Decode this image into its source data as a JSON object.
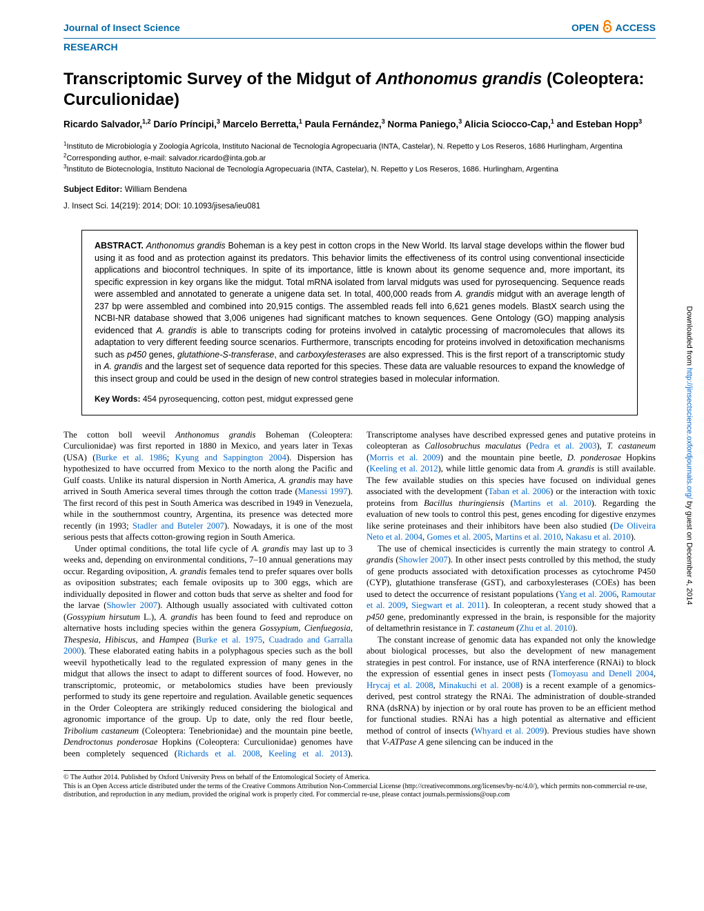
{
  "header": {
    "journal": "Journal of Insect Science",
    "open_label": "OPEN",
    "access_label": "ACCESS",
    "section": "RESEARCH"
  },
  "article": {
    "title_html": "Transcriptomic Survey of the Midgut of <em>Anthonomus grandis</em> (Coleoptera: Curculionidae)",
    "authors_html": "Ricardo Salvador,<sup>1,2</sup> Darío Príncipi,<sup>3</sup> Marcelo Berretta,<sup>1</sup> Paula Fernández,<sup>3</sup> Norma Paniego,<sup>3</sup> Alicia Sciocco-Cap,<sup>1</sup> and Esteban Hopp<sup>3</sup>",
    "affiliations_html": "<sup>1</sup>Instituto de Microbiología y Zoología Agrícola, Instituto Nacional de Tecnología Agropecuaria (INTA, Castelar), N. Repetto y Los Reseros, 1686 Hurlingham, Argentina<br><sup>2</sup>Corresponding author, e-mail: salvador.ricardo@inta.gob.ar<br><sup>3</sup>Instituto de Biotecnología, Instituto Nacional de Tecnología Agropecuaria (INTA, Castelar), N. Repetto y Los Reseros, 1686. Hurlingham, Argentina",
    "subject_editor_label": "Subject Editor:",
    "subject_editor_name": "William Bendena",
    "citation": "J. Insect Sci. 14(219): 2014; DOI: 10.1093/jisesa/ieu081"
  },
  "abstract": {
    "text_html": "<b>ABSTRACT.</b> <em>Anthonomus grandis</em> Boheman is a key pest in cotton crops in the New World. Its larval stage develops within the flower bud using it as food and as protection against its predators. This behavior limits the effectiveness of its control using conventional insecticide applications and biocontrol techniques. In spite of its importance, little is known about its genome sequence and, more important, its specific expression in key organs like the midgut. Total mRNA isolated from larval midguts was used for pyrosequencing. Sequence reads were assembled and annotated to generate a unigene data set. In total, 400,000 reads from <em>A. grandis</em> midgut with an average length of 237 bp were assembled and combined into 20,915 contigs. The assembled reads fell into 6,621 genes models. BlastX search using the NCBI-NR database showed that 3,006 unigenes had significant matches to known sequences. Gene Ontology (GO) mapping analysis evidenced that <em>A. grandis</em> is able to transcripts coding for proteins involved in catalytic processing of macromolecules that allows its adaptation to very different feeding source scenarios. Furthermore, transcripts encoding for proteins involved in detoxification mechanisms such as <em>p450</em> genes, <em>glutathione-S-transferase</em>, and <em>carboxylesterases</em> are also expressed. This is the first report of a transcriptomic study in <em>A. grandis</em> and the largest set of sequence data reported for this species. These data are valuable resources to expand the knowledge of this insect group and could be used in the design of new control strategies based in molecular information.",
    "keywords_label": "Key Words",
    "keywords_text": "454 pyrosequencing, cotton pest, midgut expressed gene"
  },
  "body": {
    "p1_html": "The cotton boll weevil <em>Anthonomus grandis</em> Boheman (Coleoptera: Curculionidae) was first reported in 1880 in Mexico, and years later in Texas (USA) (<span class='link'>Burke et al. 1986</span>; <span class='link'>Kyung and Sappington 2004</span>). Dispersion has hypothesized to have occurred from Mexico to the north along the Pacific and Gulf coasts. Unlike its natural dispersion in North America, <em>A. grandis</em> may have arrived in South America several times through the cotton trade (<span class='link'>Manessi 1997</span>). The first record of this pest in South America was described in 1949 in Venezuela, while in the southernmost country, Argentina, its presence was detected more recently (in 1993; <span class='link'>Stadler and Buteler 2007</span>). Nowadays, it is one of the most serious pests that affects cotton-growing region in South America.",
    "p2_html": "Under optimal conditions, the total life cycle of <em>A. grandis</em> may last up to 3 weeks and, depending on environmental conditions, 7–10 annual generations may occur. Regarding oviposition, <em>A. grandis</em> females tend to prefer squares over bolls as oviposition substrates; each female oviposits up to 300 eggs, which are individually deposited in flower and cotton buds that serve as shelter and food for the larvae (<span class='link'>Showler 2007</span>). Although usually associated with cultivated cotton (<em>Gossypium hirsutum</em> L.), <em>A. grandis</em> has been found to feed and reproduce on alternative hosts including species within the genera <em>Gossypium, Cienfuegosia, Thespesia, Hibiscus</em>, and <em>Hampea</em> (<span class='link'>Burke et al. 1975</span>, <span class='link'>Cuadrado and Garralla 2000</span>). These elaborated eating habits in a polyphagous species such as the boll weevil hypothetically lead to the regulated expression of many genes in the midgut that allows the insect to adapt to different sources of food. However, no transcriptomic, proteomic, or metabolomics studies have been previously performed to study its gene repertoire and regulation. Available genetic sequences in the Order Coleoptera are strikingly reduced considering the biological and agronomic importance of the group. Up to date, only the red flour beetle, <em>Tribolium castaneum</em> (Coleoptera: Tenebrionidae) and the mountain pine beetle, <em>Dendroctonus ponderosae</em> Hopkins (Coleoptera: Curculionidae) genomes have been completely sequenced (<span class='link'>Richards et al. 2008</span>, <span class='link'>Keeling et al. 2013</span>). Transcriptome analyses have described expressed genes and putative proteins in coleopteran as <em>Callosobruchus maculatus</em> (<span class='link'>Pedra et al. 2003</span>), <em>T. castaneum</em> (<span class='link'>Morris et al. 2009</span>) and the mountain pine beetle, <em>D. ponderosae</em> Hopkins (<span class='link'>Keeling et al. 2012</span>), while little genomic data from <em>A. grandis</em> is still available. The few available studies on this species have focused on individual genes associated with the development (<span class='link'>Taban et al. 2006</span>) or the interaction with toxic proteins from <em>Bacillus thuringiensis</em> (<span class='link'>Martins et al. 2010</span>). Regarding the evaluation of new tools to control this pest, genes encoding for digestive enzymes like serine proteinases and their inhibitors have been also studied (<span class='link'>De Oliveira Neto et al. 2004</span>, <span class='link'>Gomes et al. 2005</span>, <span class='link'>Martins et al. 2010</span>, <span class='link'>Nakasu et al. 2010</span>).",
    "p3_html": "The use of chemical insecticides is currently the main strategy to control <em>A. grandis</em> (<span class='link'>Showler 2007</span>). In other insect pests controlled by this method, the study of gene products associated with detoxification processes as cytochrome P450 (CYP), glutathione transferase (GST), and carboxylesterases (COEs) has been used to detect the occurrence of resistant populations (<span class='link'>Yang et al. 2006</span>, <span class='link'>Ramoutar et al. 2009</span>, <span class='link'>Siegwart et al. 2011</span>). In coleopteran, a recent study showed that a <em>p450</em> gene, predominantly expressed in the brain, is responsible for the majority of deltamethrin resistance in <em>T. castaneum</em> (<span class='link'>Zhu et al. 2010</span>).",
    "p4_html": "The constant increase of genomic data has expanded not only the knowledge about biological processes, but also the development of new management strategies in pest control. For instance, use of RNA interference (RNAi) to block the expression of essential genes in insect pests (<span class='link'>Tomoyasu and Denell 2004</span>, <span class='link'>Hrycaj et al. 2008</span>, <span class='link'>Minakuchi et al. 2008</span>) is a recent example of a genomics-derived, pest control strategy the RNAi. The administration of double-stranded RNA (dsRNA) by injection or by oral route has proven to be an efficient method for functional studies. RNAi has a high potential as alternative and efficient method of control of insects (<span class='link'>Whyard et al. 2009</span>). Previous studies have shown that <em>V-ATPase A</em> gene silencing can be induced in the"
  },
  "footer": {
    "copyright": "© The Author 2014. Published by Oxford University Press on behalf of the Entomological Society of America.",
    "license": "This is an Open Access article distributed under the terms of the Creative Commons Attribution Non-Commercial License (http://creativecommons.org/licenses/by-nc/4.0/), which permits non-commercial re-use, distribution, and reproduction in any medium, provided the original work is properly cited. For commercial re-use, please contact journals.permissions@oup.com"
  },
  "sidebar": {
    "text_html": "Downloaded from <a href='#'>http://jinsectscience.oxfordjournals.org/</a> by guest on December 4, 2014"
  },
  "colors": {
    "accent": "#0066a4",
    "link": "#0066cc",
    "text": "#000000",
    "background": "#ffffff",
    "oa_orange": "#f57c00"
  }
}
